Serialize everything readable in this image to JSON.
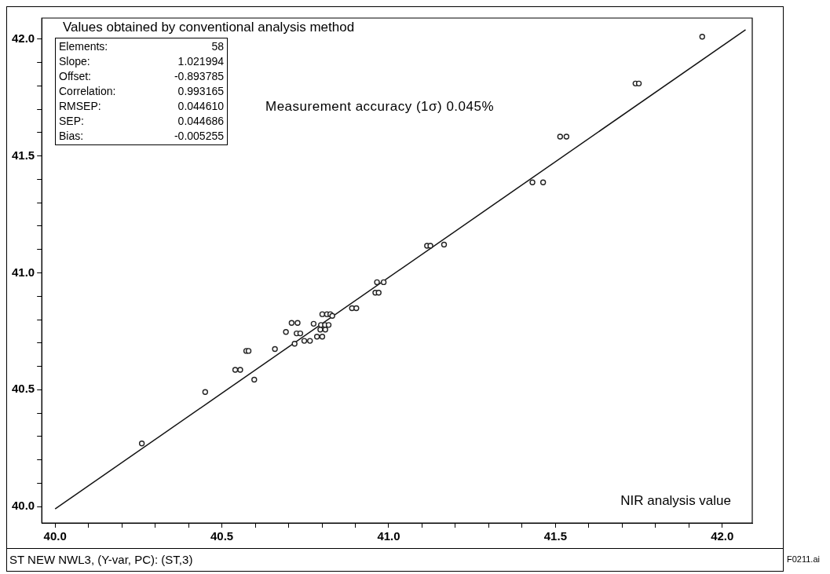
{
  "chart_data": {
    "type": "scatter",
    "ylabel": "Values obtained by conventional analysis method",
    "xlabel": "NIR analysis value",
    "annotations": [
      "Measurement accuracy (1σ) 0.045%",
      "Elements:\t58",
      "Slope:\t1.021994",
      "Offset:\t-0.893785",
      "Correlation:\t0.993165",
      "RMSEP:\t0.044610",
      "SEP:\t0.044686",
      "Bias:\t-0.005255",
      "ST NEW NWL3, (Y-var, PC): (ST,3)",
      "F0211.ai"
    ],
    "xlim": [
      39.96,
      42.09
    ],
    "ylim": [
      39.93,
      42.09
    ],
    "xticks": [
      {
        "value": 40,
        "label": "40.0"
      },
      {
        "value": 40.1,
        "label": null
      },
      {
        "value": 40.2,
        "label": null
      },
      {
        "value": 40.3,
        "label": null
      },
      {
        "value": 40.4,
        "label": null
      },
      {
        "value": 40.5,
        "label": "40.5"
      },
      {
        "value": 40.6,
        "label": null
      },
      {
        "value": 40.7,
        "label": null
      },
      {
        "value": 40.8,
        "label": null
      },
      {
        "value": 40.9,
        "label": null
      },
      {
        "value": 41,
        "label": "41.0"
      },
      {
        "value": 41.1,
        "label": null
      },
      {
        "value": 41.2,
        "label": null
      },
      {
        "value": 41.3,
        "label": null
      },
      {
        "value": 41.4,
        "label": null
      },
      {
        "value": 41.5,
        "label": "41.5"
      },
      {
        "value": 41.6,
        "label": null
      },
      {
        "value": 41.7,
        "label": null
      },
      {
        "value": 41.8,
        "label": null
      },
      {
        "value": 41.9,
        "label": null
      },
      {
        "value": 42,
        "label": "42.0"
      }
    ],
    "yticks": [
      {
        "value": 40,
        "label": "40.0"
      },
      {
        "value": 40.1,
        "label": null
      },
      {
        "value": 40.2,
        "label": null
      },
      {
        "value": 40.3,
        "label": null
      },
      {
        "value": 40.4,
        "label": null
      },
      {
        "value": 40.5,
        "label": "40.5"
      },
      {
        "value": 40.6,
        "label": null
      },
      {
        "value": 40.7,
        "label": null
      },
      {
        "value": 40.8,
        "label": null
      },
      {
        "value": 40.9,
        "label": null
      },
      {
        "value": 41,
        "label": "41.0"
      },
      {
        "value": 41.1,
        "label": null
      },
      {
        "value": 41.2,
        "label": null
      },
      {
        "value": 41.3,
        "label": null
      },
      {
        "value": 41.4,
        "label": null
      },
      {
        "value": 41.5,
        "label": "41.5"
      },
      {
        "value": 41.6,
        "label": null
      },
      {
        "value": 41.7,
        "label": null
      },
      {
        "value": 41.8,
        "label": null
      },
      {
        "value": 41.9,
        "label": null
      },
      {
        "value": 42,
        "label": "42.0"
      }
    ],
    "series": [
      {
        "marker": "circle",
        "color": "#222222",
        "x": [
          40.26,
          40.45,
          40.597,
          40.54,
          40.555,
          40.573,
          40.58,
          40.659,
          40.718,
          40.709,
          40.727,
          40.692,
          40.724,
          40.735,
          40.747,
          40.764,
          40.785,
          40.801,
          40.775,
          40.797,
          40.809,
          40.82,
          40.795,
          40.81,
          40.801,
          40.815,
          40.825,
          40.831,
          40.89,
          40.903,
          40.96,
          40.97,
          40.965,
          40.985,
          41.115,
          41.125,
          41.166,
          41.431,
          41.463,
          41.514,
          41.533,
          41.74,
          41.75,
          41.94
        ],
        "values": [
          40.27,
          40.49,
          40.543,
          40.585,
          40.585,
          40.666,
          40.666,
          40.674,
          40.697,
          40.786,
          40.786,
          40.747,
          40.741,
          40.741,
          40.709,
          40.709,
          40.727,
          40.727,
          40.782,
          40.777,
          40.777,
          40.777,
          40.757,
          40.757,
          40.823,
          40.823,
          40.823,
          40.816,
          40.849,
          40.849,
          40.915,
          40.915,
          40.96,
          40.96,
          41.116,
          41.116,
          41.121,
          41.387,
          41.387,
          41.583,
          41.583,
          41.81,
          41.81,
          42.01
        ]
      },
      {
        "type": "line",
        "marker": "none",
        "color": "#111111",
        "x": [
          40.0,
          42.07
        ],
        "values": [
          39.99,
          42.04
        ]
      }
    ]
  }
}
